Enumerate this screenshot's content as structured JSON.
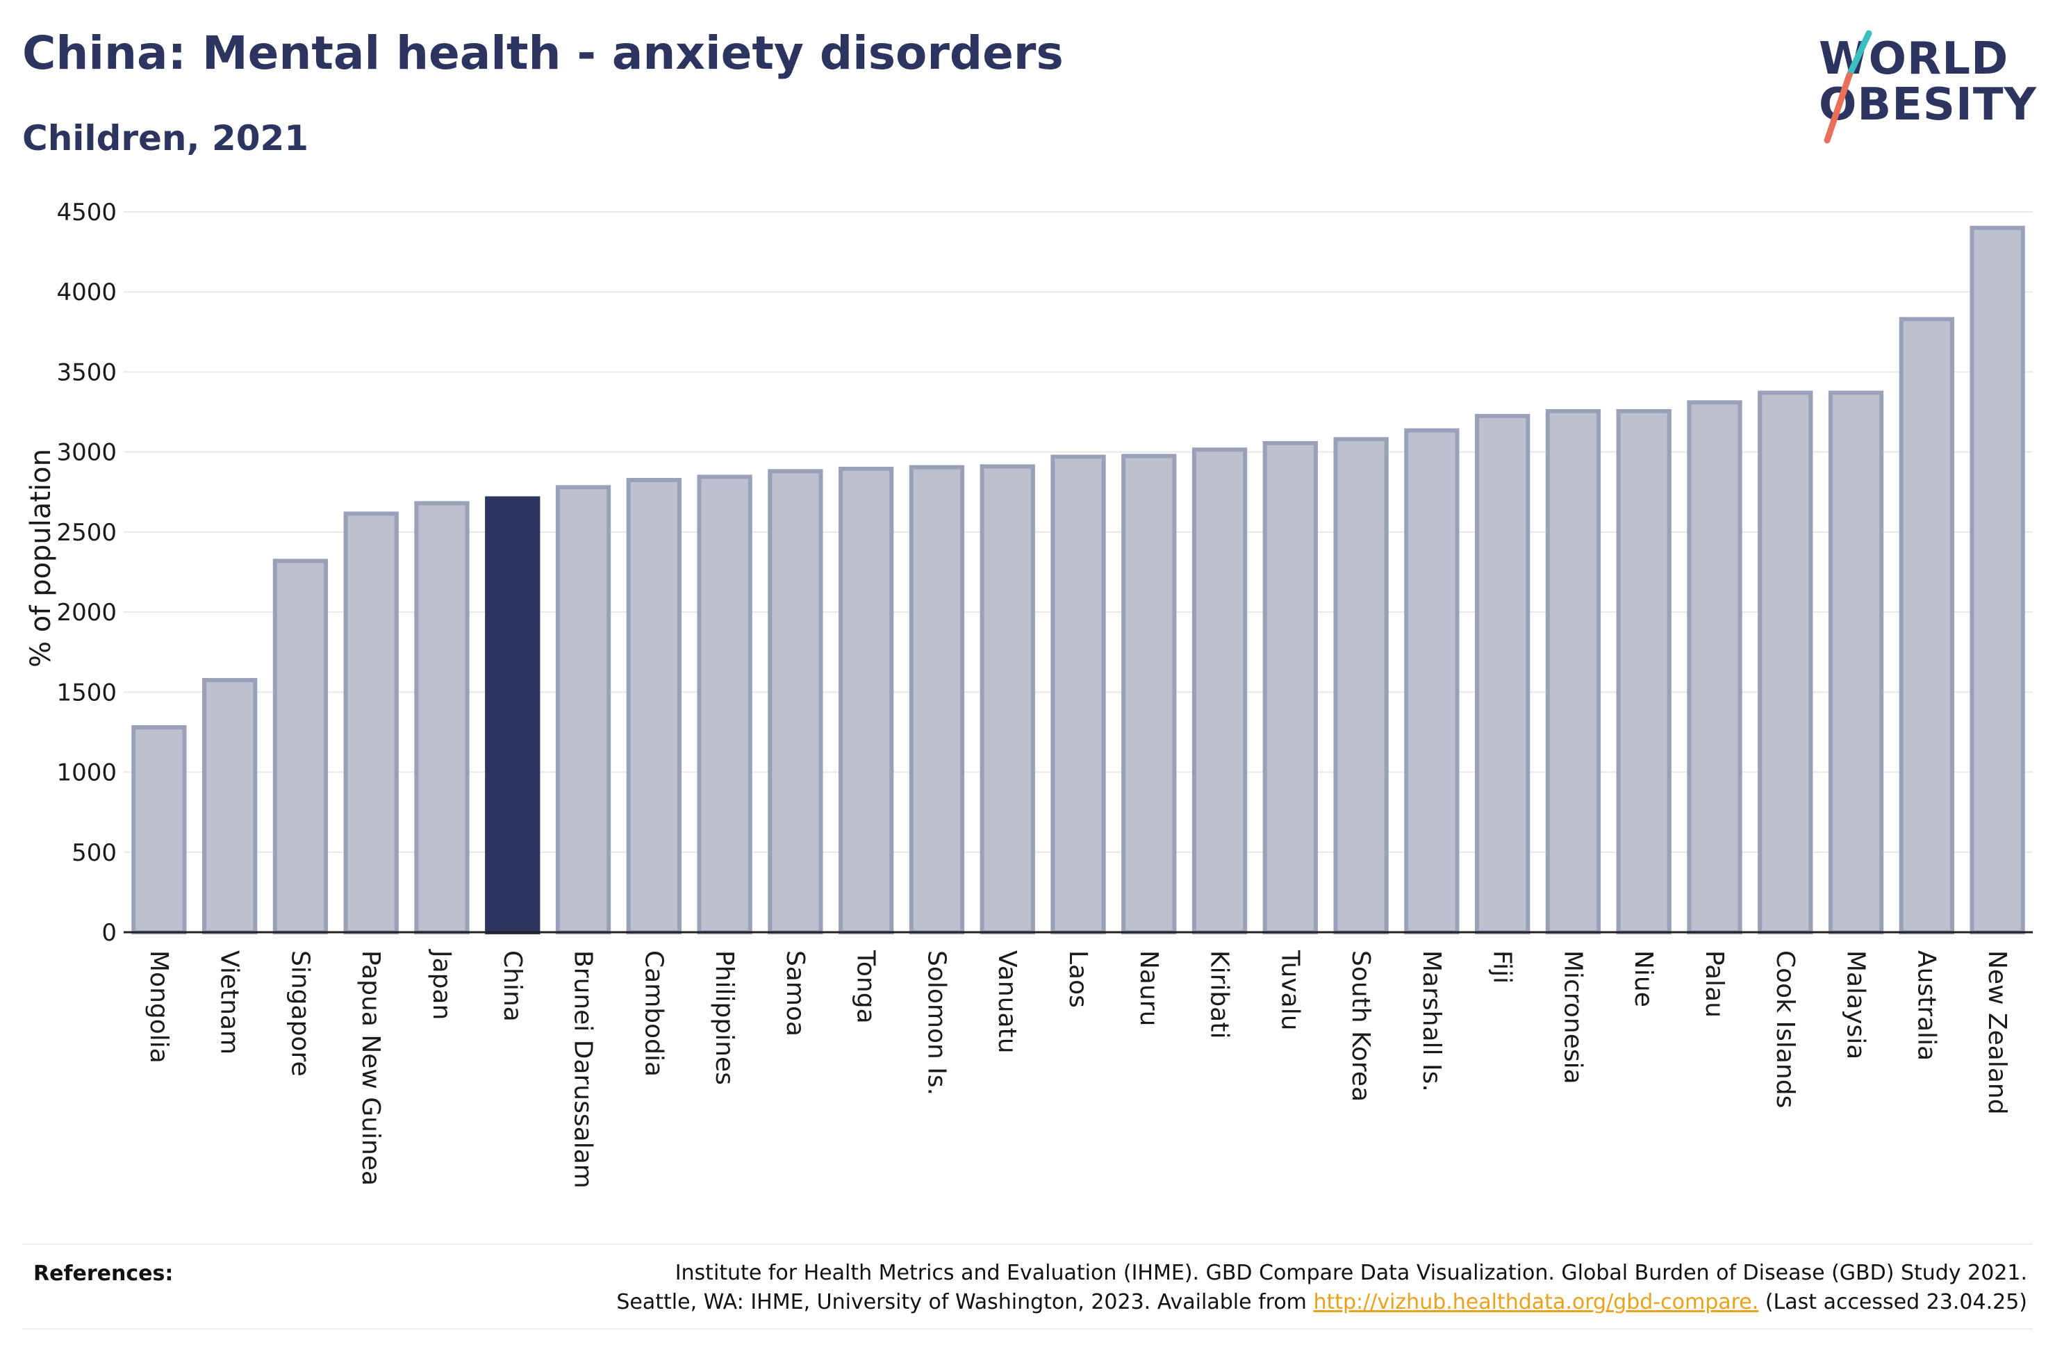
{
  "header": {
    "title": "China: Mental health - anxiety disorders",
    "subtitle": "Children, 2021"
  },
  "logo": {
    "line1": "WORLD",
    "line2": "OBESITY"
  },
  "references": {
    "label": "References:",
    "line1": "Institute for Health Metrics and Evaluation (IHME). GBD Compare Data Visualization. Global Burden of Disease (GBD) Study 2021.",
    "line2_prefix": "Seattle, WA: IHME, University of Washington, 2023. Available from ",
    "link": "http://vizhub.healthdata.org/gbd-compare.",
    "line2_suffix": " (Last accessed 23.04.25)"
  },
  "colors": {
    "highlight": "#2b3560",
    "bar_fill": "#bcc0cf",
    "bar_stroke": "#9aa0b8",
    "grid": "#e6e8ee",
    "logo_teal": "#3bbfbf",
    "logo_coral": "#e8705a"
  },
  "chart_data": {
    "type": "bar",
    "ylabel": "% of population",
    "ylim": [
      0,
      4500
    ],
    "yticks": [
      0,
      500,
      1000,
      1500,
      2000,
      2500,
      3000,
      3500,
      4000,
      4500
    ],
    "grid": true,
    "highlight": "China",
    "categories": [
      "Mongolia",
      "Vietnam",
      "Singapore",
      "Papua New Guinea",
      "Japan",
      "China",
      "Brunei Darussalam",
      "Cambodia",
      "Philippines",
      "Samoa",
      "Tonga",
      "Solomon Is.",
      "Vanuatu",
      "Laos",
      "Nauru",
      "Kiribati",
      "Tuvalu",
      "South Korea",
      "Marshall Is.",
      "Fiji",
      "Micronesia",
      "Niue",
      "Palau",
      "Cook Islands",
      "Malaysia",
      "Australia",
      "New Zealand"
    ],
    "values": [
      1280,
      1575,
      2320,
      2615,
      2680,
      2710,
      2780,
      2825,
      2845,
      2880,
      2895,
      2905,
      2910,
      2970,
      2975,
      3015,
      3055,
      3080,
      3135,
      3225,
      3255,
      3255,
      3310,
      3370,
      3370,
      3830,
      4400
    ]
  }
}
